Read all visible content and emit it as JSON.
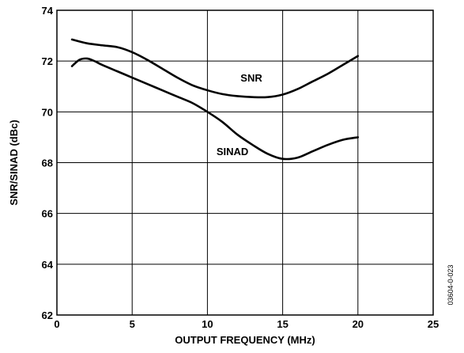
{
  "chart_data": {
    "type": "line",
    "title": "",
    "xlabel": "OUTPUT FREQUENCY (MHz)",
    "ylabel": "SNR/SINAD (dBc)",
    "xlim": [
      0,
      25
    ],
    "ylim": [
      62,
      74
    ],
    "xticks": [
      0,
      5,
      10,
      15,
      20,
      25
    ],
    "yticks": [
      62,
      64,
      66,
      68,
      70,
      72,
      74
    ],
    "grid": true,
    "series": [
      {
        "name": "SNR",
        "label_at": [
          12.2,
          71.2
        ],
        "x": [
          1,
          2,
          3,
          4,
          5,
          6,
          7,
          8,
          9,
          10,
          11,
          12,
          13,
          14,
          15,
          16,
          17,
          18,
          19,
          20
        ],
        "y": [
          72.85,
          72.7,
          72.62,
          72.55,
          72.35,
          72.05,
          71.7,
          71.35,
          71.05,
          70.85,
          70.7,
          70.62,
          70.58,
          70.58,
          70.68,
          70.9,
          71.2,
          71.5,
          71.85,
          72.2
        ]
      },
      {
        "name": "SINAD",
        "label_at": [
          10.6,
          68.3
        ],
        "x": [
          1,
          1.5,
          2,
          2.5,
          3,
          4,
          5,
          6,
          7,
          8,
          9,
          10,
          11,
          12,
          13,
          14,
          15,
          16,
          17,
          18,
          19,
          20
        ],
        "y": [
          71.8,
          72.05,
          72.1,
          72.0,
          71.85,
          71.6,
          71.35,
          71.1,
          70.85,
          70.6,
          70.35,
          70.0,
          69.6,
          69.1,
          68.7,
          68.35,
          68.15,
          68.2,
          68.45,
          68.7,
          68.9,
          69.0
        ]
      }
    ]
  },
  "figure_id": "03604-0-023"
}
